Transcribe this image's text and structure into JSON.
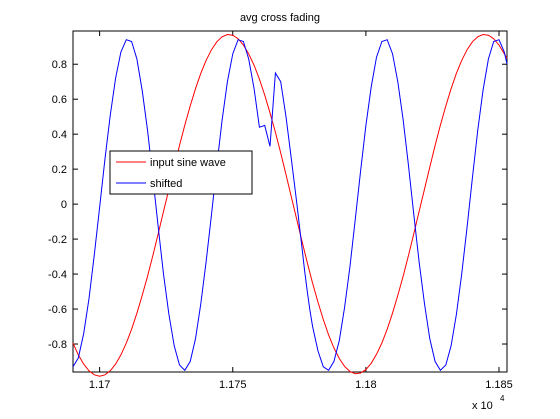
{
  "chart_data": {
    "type": "line",
    "title": "avg cross fading",
    "xlabel": "",
    "ylabel": "",
    "xlim": [
      11690,
      11853
    ],
    "ylim": [
      -0.96,
      0.99
    ],
    "x_multiplier_label": "x 10",
    "x_multiplier_exponent": "4",
    "xticks": [
      {
        "value": 11700,
        "label": "1.17"
      },
      {
        "value": 11750,
        "label": "1.175"
      },
      {
        "value": 11800,
        "label": "1.18"
      },
      {
        "value": 11850,
        "label": "1.185"
      }
    ],
    "yticks": [
      {
        "value": -0.8,
        "label": "-0.8"
      },
      {
        "value": -0.6,
        "label": "-0.6"
      },
      {
        "value": -0.4,
        "label": "-0.4"
      },
      {
        "value": -0.2,
        "label": "-0.2"
      },
      {
        "value": 0,
        "label": "0"
      },
      {
        "value": 0.2,
        "label": "0.2"
      },
      {
        "value": 0.4,
        "label": "0.4"
      },
      {
        "value": 0.6,
        "label": "0.6"
      },
      {
        "value": 0.8,
        "label": "0.8"
      }
    ],
    "grid": false,
    "legend_position": "middle-left",
    "series": [
      {
        "name": "input sine wave",
        "color": "#ff0000",
        "x": [
          11690,
          11692,
          11694,
          11696,
          11698,
          11700,
          11702,
          11704,
          11706,
          11708,
          11710,
          11712,
          11714,
          11716,
          11718,
          11720,
          11722,
          11724,
          11726,
          11728,
          11730,
          11732,
          11734,
          11736,
          11738,
          11740,
          11742,
          11744,
          11746,
          11748,
          11750,
          11752,
          11754,
          11756,
          11758,
          11760,
          11762,
          11764,
          11766,
          11768,
          11770,
          11772,
          11774,
          11776,
          11778,
          11780,
          11782,
          11784,
          11786,
          11788,
          11790,
          11792,
          11794,
          11796,
          11798,
          11800,
          11802,
          11804,
          11806,
          11808,
          11810,
          11812,
          11814,
          11816,
          11818,
          11820,
          11822,
          11824,
          11826,
          11828,
          11830,
          11832,
          11834,
          11836,
          11838,
          11840,
          11842,
          11844,
          11846,
          11848,
          11850,
          11852,
          11853
        ],
        "y": [
          -0.795,
          -0.862,
          -0.915,
          -0.953,
          -0.976,
          -0.984,
          -0.976,
          -0.953,
          -0.915,
          -0.862,
          -0.795,
          -0.715,
          -0.624,
          -0.522,
          -0.411,
          -0.293,
          -0.169,
          -0.042,
          0.086,
          0.212,
          0.335,
          0.452,
          0.561,
          0.66,
          0.748,
          0.822,
          0.883,
          0.928,
          0.957,
          0.97,
          0.966,
          0.946,
          0.91,
          0.859,
          0.794,
          0.715,
          0.624,
          0.522,
          0.411,
          0.293,
          0.169,
          0.042,
          -0.086,
          -0.212,
          -0.335,
          -0.452,
          -0.561,
          -0.66,
          -0.748,
          -0.822,
          -0.883,
          -0.928,
          -0.957,
          -0.97,
          -0.966,
          -0.946,
          -0.91,
          -0.859,
          -0.794,
          -0.715,
          -0.624,
          -0.522,
          -0.411,
          -0.293,
          -0.169,
          -0.042,
          0.086,
          0.212,
          0.335,
          0.452,
          0.561,
          0.66,
          0.748,
          0.822,
          0.883,
          0.928,
          0.957,
          0.97,
          0.966,
          0.946,
          0.91,
          0.859,
          0.835
        ]
      },
      {
        "name": "shifted",
        "color": "#0000ff",
        "x": [
          11690,
          11692,
          11694,
          11696,
          11698,
          11700,
          11702,
          11704,
          11706,
          11708,
          11710,
          11712,
          11714,
          11716,
          11718,
          11720,
          11722,
          11724,
          11726,
          11728,
          11730,
          11732,
          11734,
          11736,
          11738,
          11740,
          11742,
          11744,
          11746,
          11748,
          11750,
          11752,
          11754,
          11756,
          11758,
          11760,
          11762,
          11764,
          11766,
          11768,
          11770,
          11772,
          11774,
          11776,
          11777,
          11778,
          11779,
          11780,
          11782,
          11784,
          11786,
          11788,
          11790,
          11792,
          11794,
          11796,
          11798,
          11800,
          11802,
          11804,
          11806,
          11808,
          11810,
          11812,
          11814,
          11816,
          11818,
          11820,
          11822,
          11824,
          11826,
          11828,
          11830,
          11832,
          11834,
          11836,
          11838,
          11840,
          11842,
          11844,
          11846,
          11848,
          11850,
          11852,
          11853
        ],
        "y": [
          -0.93,
          -0.88,
          -0.74,
          -0.54,
          -0.29,
          -0.02,
          0.26,
          0.51,
          0.72,
          0.87,
          0.94,
          0.93,
          0.83,
          0.65,
          0.42,
          0.15,
          -0.13,
          -0.4,
          -0.63,
          -0.81,
          -0.92,
          -0.95,
          -0.9,
          -0.77,
          -0.57,
          -0.33,
          -0.06,
          0.22,
          0.48,
          0.7,
          0.86,
          0.94,
          0.93,
          0.83,
          0.66,
          0.44,
          0.45,
          0.33,
          0.75,
          0.7,
          0.5,
          0.26,
          0.01,
          -0.25,
          -0.38,
          -0.5,
          -0.61,
          -0.7,
          -0.84,
          -0.93,
          -0.95,
          -0.9,
          -0.78,
          -0.59,
          -0.36,
          -0.09,
          0.19,
          0.45,
          0.67,
          0.84,
          0.93,
          0.94,
          0.86,
          0.7,
          0.48,
          0.22,
          -0.06,
          -0.33,
          -0.57,
          -0.77,
          -0.9,
          -0.95,
          -0.92,
          -0.81,
          -0.63,
          -0.4,
          -0.13,
          0.15,
          0.42,
          0.65,
          0.83,
          0.93,
          0.94,
          0.87,
          0.8
        ]
      }
    ]
  }
}
